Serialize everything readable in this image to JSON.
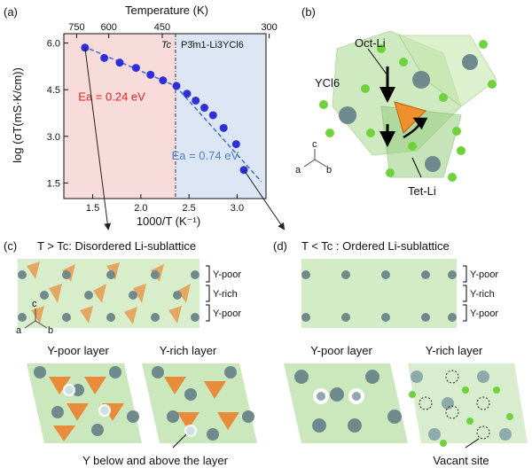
{
  "panels": {
    "a": "(a)",
    "b": "(b)",
    "c": "(c)",
    "d": "(d)"
  },
  "chart_data": {
    "type": "scatter",
    "title": "",
    "top_axis_label": "Temperature (K)",
    "top_ticks": [
      {
        "T": 750,
        "label": "750"
      },
      {
        "T": 600,
        "label": "600"
      },
      {
        "T": 450,
        "label": "450"
      },
      {
        "T": 300,
        "label": "300"
      }
    ],
    "xlabel": "1000/T (K⁻¹)",
    "ylabel": "log (σT(mS·K/cm))",
    "xlim": [
      1.2,
      3.3
    ],
    "ylim": [
      1.0,
      6.3
    ],
    "x_ticks": [
      1.5,
      2.0,
      2.5,
      3.0
    ],
    "x_tick_labels": [
      "1.5",
      "2.0",
      "2.5",
      "3.0"
    ],
    "y_ticks": [
      1.5,
      3.0,
      4.5,
      6.0
    ],
    "y_tick_labels": [
      "1.5",
      "3.0",
      "4.5",
      "6.0"
    ],
    "tc_x": 2.36,
    "tc_label": "Tc",
    "phase_label": "P3̄m1-Li3YCl6",
    "ea_high": {
      "label": "Ea = 0.24 eV",
      "color": "#e0201c"
    },
    "ea_low": {
      "label": "Ea = 0.74 eV",
      "color": "#4a7fc1"
    },
    "points": [
      {
        "x": 1.42,
        "y": 5.85
      },
      {
        "x": 1.62,
        "y": 5.52
      },
      {
        "x": 1.78,
        "y": 5.37
      },
      {
        "x": 1.95,
        "y": 5.2
      },
      {
        "x": 2.1,
        "y": 4.98
      },
      {
        "x": 2.23,
        "y": 4.8
      },
      {
        "x": 2.37,
        "y": 4.62
      },
      {
        "x": 2.48,
        "y": 4.37
      },
      {
        "x": 2.57,
        "y": 4.15
      },
      {
        "x": 2.66,
        "y": 3.92
      },
      {
        "x": 2.75,
        "y": 3.68
      },
      {
        "x": 2.86,
        "y": 3.27
      },
      {
        "x": 2.99,
        "y": 2.75
      },
      {
        "x": 3.07,
        "y": 1.92
      }
    ],
    "fit_lines": [
      {
        "x": [
          1.4,
          2.36
        ],
        "y": [
          5.9,
          4.62
        ]
      },
      {
        "x": [
          2.36,
          3.25
        ],
        "y": [
          4.62,
          1.55
        ]
      }
    ],
    "colors": {
      "points": "#2f2fd8",
      "fit": "#3f6fc0",
      "shade_left": "#f8dcdc",
      "shade_right": "#dde6f4"
    }
  },
  "panel_b": {
    "oct_li": "Oct-Li",
    "ycl6": "YCl6",
    "tet_li": "Tet-Li",
    "axes": {
      "a": "a",
      "b": "b",
      "c": "c"
    }
  },
  "panel_c": {
    "title": "T > Tc: Disordered Li-sublattice",
    "layers": [
      "Y-poor",
      "Y-rich",
      "Y-poor"
    ],
    "left_label": "Y-poor layer",
    "right_label": "Y-rich layer",
    "note": "Y below and above the layer",
    "axes": {
      "a": "a",
      "b": "b",
      "c": "c"
    }
  },
  "panel_d": {
    "title": "T < Tc : Ordered Li-sublattice",
    "layers": [
      "Y-poor",
      "Y-rich",
      "Y-poor"
    ],
    "left_label": "Y-poor layer",
    "right_label": "Y-rich layer",
    "note": "Vacant site"
  }
}
